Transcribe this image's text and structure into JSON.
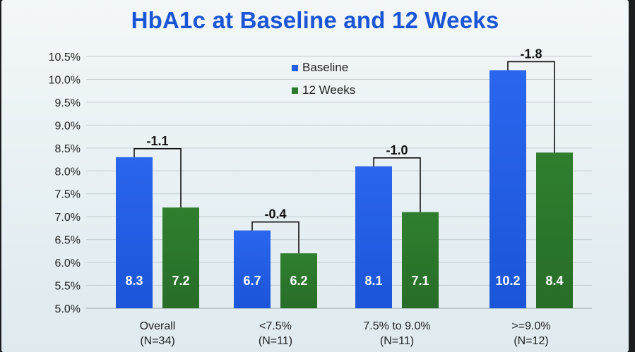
{
  "chart_data": {
    "type": "bar",
    "title": "HbA1c at Baseline and 12 Weeks",
    "xlabel": "",
    "ylabel": "",
    "ylim": [
      5.0,
      10.5
    ],
    "yticks": [
      "5.0%",
      "5.5%",
      "6.0%",
      "6.5%",
      "7.0%",
      "7.5%",
      "8.0%",
      "8.5%",
      "9.0%",
      "9.5%",
      "10.0%",
      "10.5%"
    ],
    "grid": true,
    "legend_position": "top-center",
    "categories": [
      {
        "line1": "Overall",
        "line2": "(N=34)"
      },
      {
        "line1": "<7.5%",
        "line2": "(N=11)"
      },
      {
        "line1": "7.5% to 9.0%",
        "line2": "(N=11)"
      },
      {
        "line1": ">=9.0%",
        "line2": "(N=12)"
      }
    ],
    "series": [
      {
        "name": "Baseline",
        "color": "#1f5fe0",
        "values": [
          8.3,
          6.7,
          8.1,
          10.2
        ],
        "labels": [
          "8.3",
          "6.7",
          "8.1",
          "10.2"
        ]
      },
      {
        "name": "12 Weeks",
        "color": "#2e7a2e",
        "values": [
          7.2,
          6.2,
          7.1,
          8.4
        ],
        "labels": [
          "7.2",
          "6.2",
          "7.1",
          "8.4"
        ]
      }
    ],
    "differences": [
      "-1.1",
      "-0.4",
      "-1.0",
      "-1.8"
    ]
  }
}
